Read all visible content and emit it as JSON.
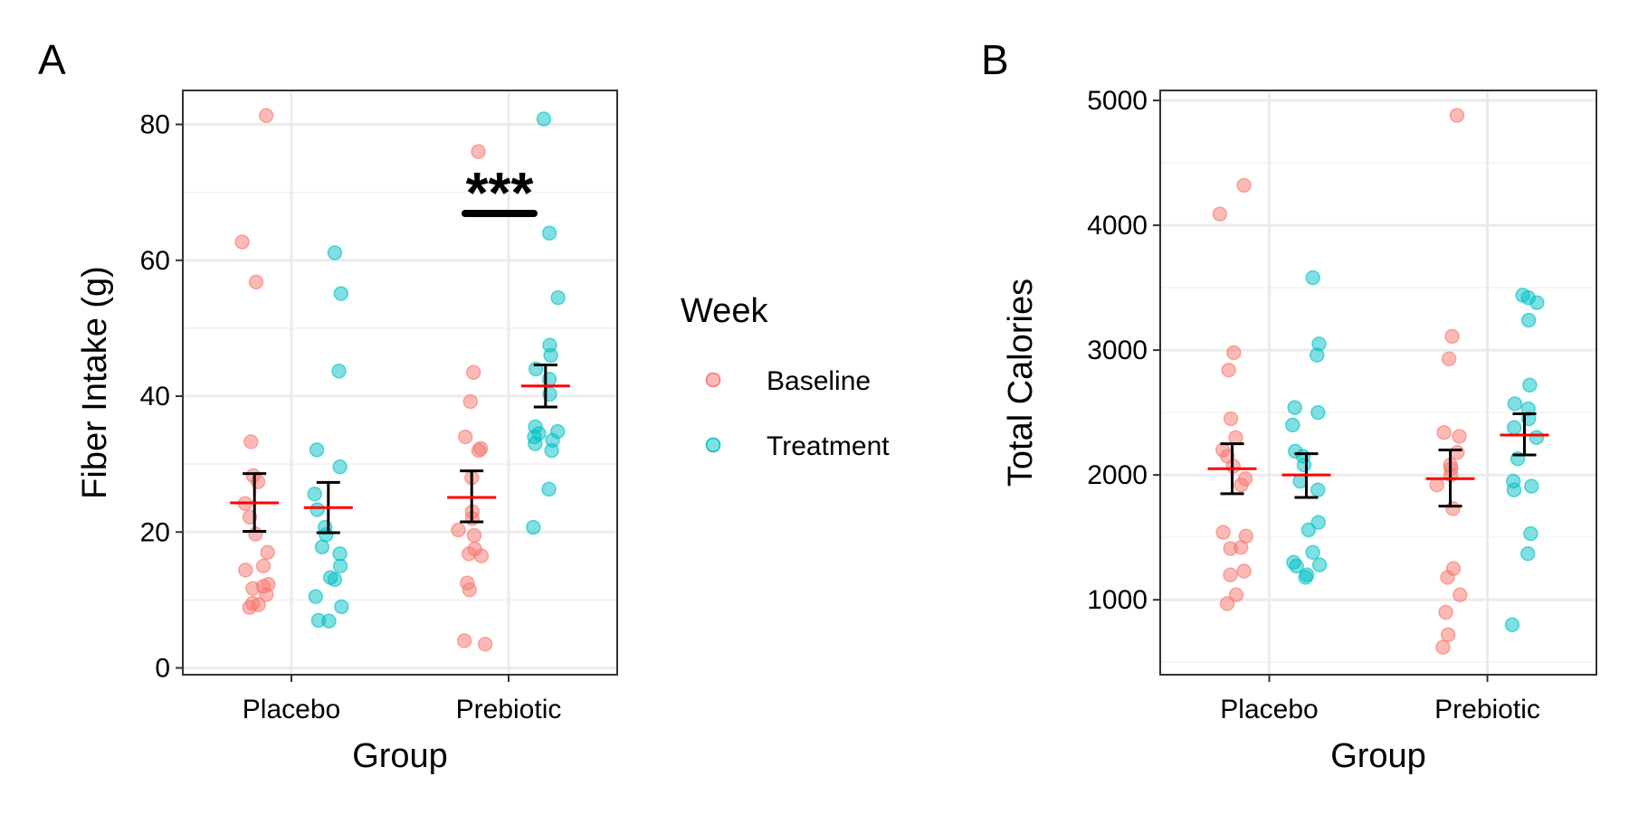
{
  "figure": {
    "legend": {
      "title": "Week",
      "items": [
        {
          "label": "Baseline",
          "color": "#F8766D"
        },
        {
          "label": "Treatment",
          "color": "#00BFC4"
        }
      ]
    },
    "mean_color": "#FF0000",
    "error_bar_color": "#000000"
  },
  "chart_data": [
    {
      "type": "scatter",
      "panel_label": "A",
      "xlabel": "Group",
      "ylabel": "Fiber Intake (g)",
      "categories": [
        "Placebo",
        "Prebiotic"
      ],
      "ylim": [
        -1,
        85
      ],
      "yticks": [
        0,
        20,
        40,
        60,
        80
      ],
      "yticks_text": [
        "0",
        "20",
        "40",
        "60",
        "80"
      ],
      "series": [
        {
          "name": "Baseline",
          "color": "#F8766D",
          "points": {
            "Placebo": [
              81.3,
              62.7,
              56.8,
              33.3,
              28.3,
              27.4,
              24.2,
              22.2,
              19.7,
              17.0,
              15.0,
              14.4,
              12.3,
              12.0,
              11.7,
              10.8,
              9.5,
              9.3,
              8.9
            ],
            "Prebiotic": [
              76.0,
              43.5,
              39.2,
              34.0,
              32.3,
              32.0,
              28.0,
              23.0,
              22.0,
              20.3,
              19.5,
              17.5,
              16.8,
              16.5,
              12.5,
              11.5,
              4.0,
              3.5
            ]
          },
          "mean": {
            "Placebo": 24.3,
            "Prebiotic": 25.1
          },
          "error_bar": {
            "Placebo": [
              20.1,
              28.6
            ],
            "Prebiotic": [
              21.5,
              29.0
            ]
          }
        },
        {
          "name": "Treatment",
          "color": "#00BFC4",
          "points": {
            "Placebo": [
              61.1,
              55.1,
              43.7,
              32.1,
              29.6,
              25.6,
              23.3,
              20.7,
              19.6,
              17.8,
              16.8,
              15.0,
              13.3,
              13.0,
              10.5,
              9.0,
              7.0,
              6.9
            ],
            "Prebiotic": [
              80.8,
              64.0,
              54.5,
              47.5,
              46.0,
              44.0,
              42.5,
              40.3,
              35.5,
              34.8,
              34.5,
              34.0,
              33.5,
              33.0,
              32.0,
              26.3,
              20.7
            ]
          },
          "mean": {
            "Placebo": 23.6,
            "Prebiotic": 41.5
          },
          "error_bar": {
            "Placebo": [
              19.9,
              27.3
            ],
            "Prebiotic": [
              38.4,
              44.6
            ]
          }
        }
      ],
      "annotations": [
        {
          "text": "***",
          "category": "Prebiotic",
          "y": 71
        }
      ]
    },
    {
      "type": "scatter",
      "panel_label": "B",
      "xlabel": "Group",
      "ylabel": "Total Calories",
      "categories": [
        "Placebo",
        "Prebiotic"
      ],
      "ylim": [
        400,
        5080
      ],
      "yticks": [
        1000,
        2000,
        3000,
        4000,
        5000
      ],
      "yticks_text": [
        "1000",
        "2000",
        "3000",
        "4000",
        "5000"
      ],
      "series": [
        {
          "name": "Baseline",
          "color": "#F8766D",
          "points": {
            "Placebo": [
              4320,
              4090,
              2980,
              2840,
              2450,
              2300,
              2200,
              2150,
              2070,
              1970,
              1920,
              1540,
              1510,
              1420,
              1410,
              1230,
              1200,
              1040,
              970
            ],
            "Prebiotic": [
              4880,
              3110,
              2930,
              2340,
              2310,
              2180,
              2080,
              2050,
              2000,
              1920,
              1730,
              1250,
              1180,
              1040,
              900,
              720,
              620
            ]
          },
          "mean": {
            "Placebo": 2050,
            "Prebiotic": 1970
          },
          "error_bar": {
            "Placebo": [
              1850,
              2250
            ],
            "Prebiotic": [
              1750,
              2200
            ]
          }
        },
        {
          "name": "Treatment",
          "color": "#00BFC4",
          "points": {
            "Placebo": [
              3580,
              3050,
              2960,
              2540,
              2500,
              2400,
              2190,
              2150,
              2080,
              1950,
              1880,
              1620,
              1560,
              1380,
              1300,
              1280,
              1270,
              1200,
              1180
            ],
            "Prebiotic": [
              3440,
              3420,
              3380,
              3240,
              2720,
              2570,
              2530,
              2450,
              2380,
              2300,
              2130,
              1950,
              1910,
              1880,
              1530,
              1370,
              800
            ]
          },
          "mean": {
            "Placebo": 2000,
            "Prebiotic": 2320
          },
          "error_bar": {
            "Placebo": [
              1820,
              2170
            ],
            "Prebiotic": [
              2160,
              2490
            ]
          }
        }
      ]
    }
  ]
}
